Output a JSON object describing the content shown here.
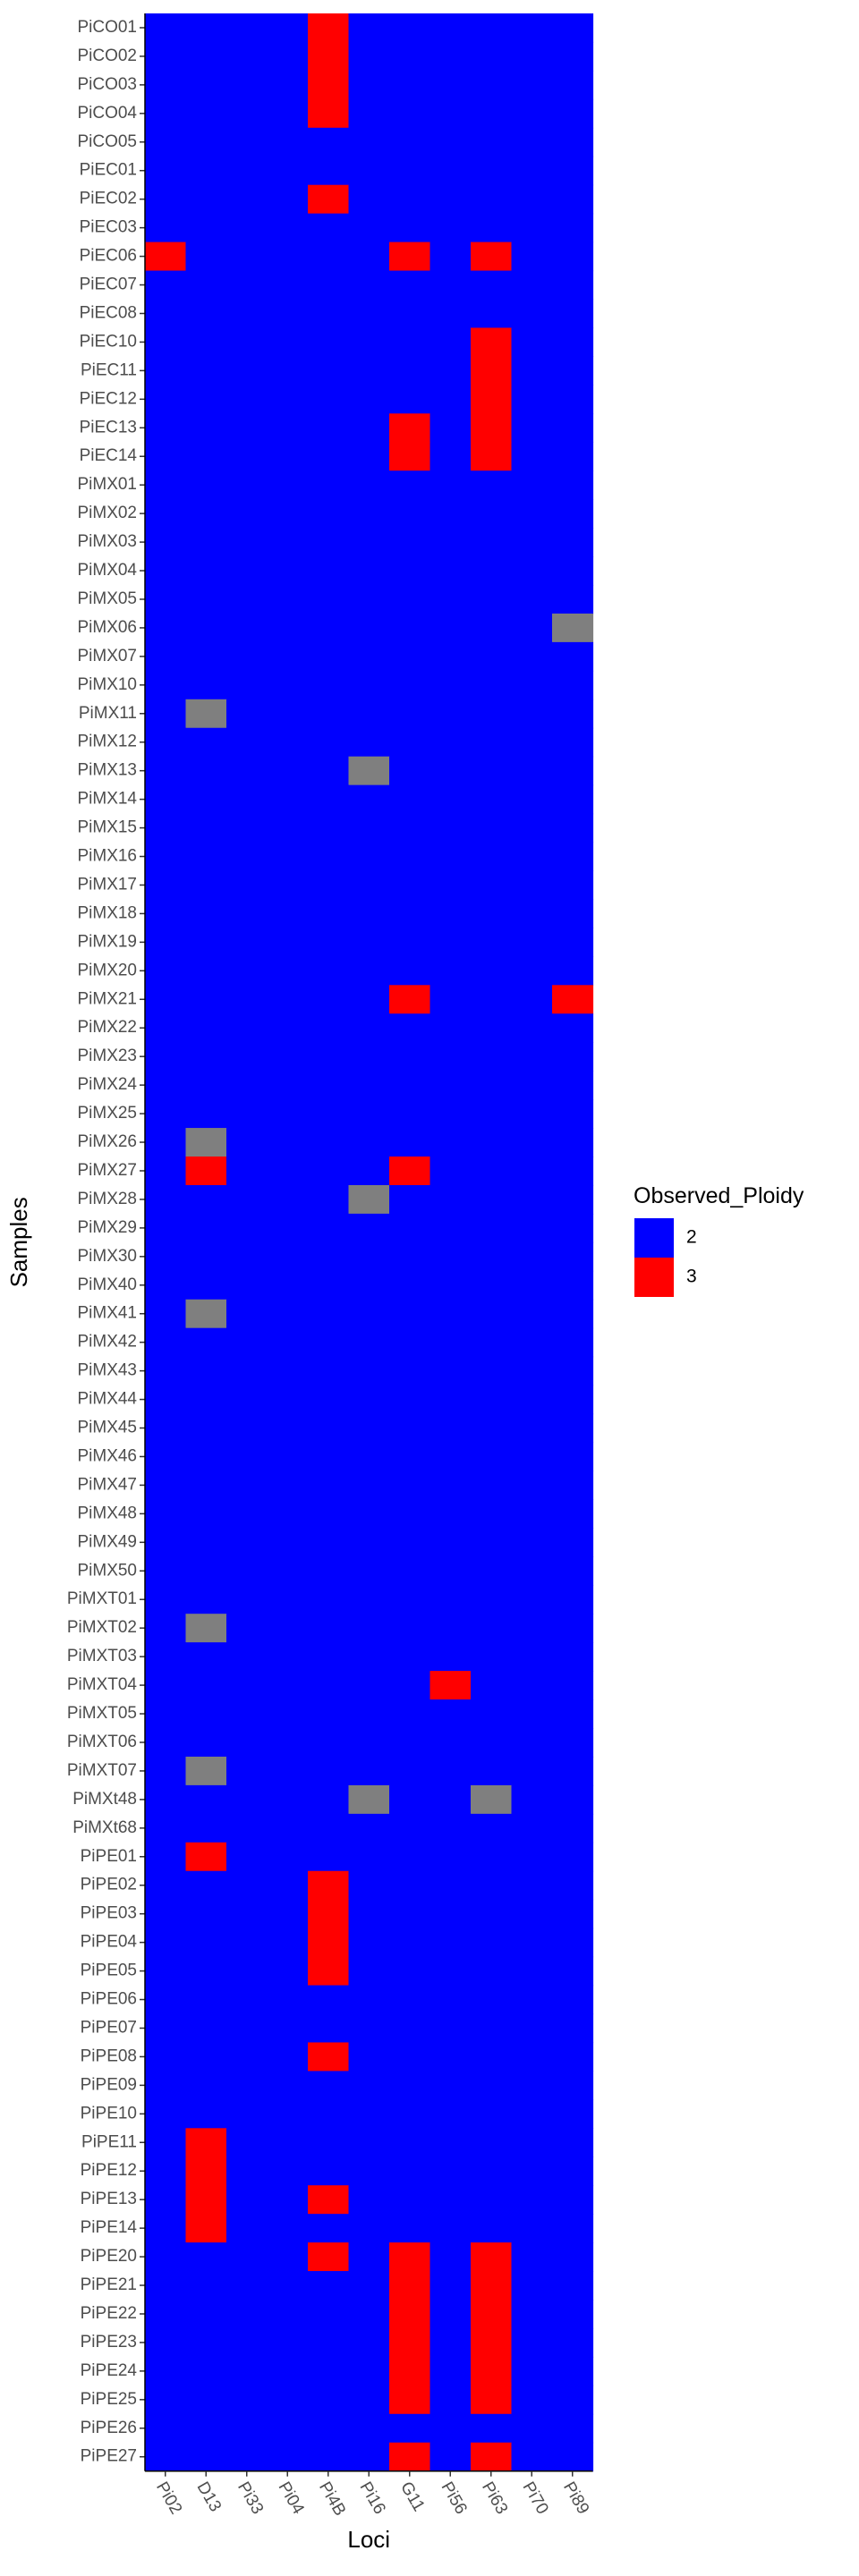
{
  "chart_data": {
    "type": "heatmap",
    "xlabel": "Loci",
    "ylabel": "Samples",
    "x": [
      "Pi02",
      "D13",
      "Pi33",
      "Pi04",
      "Pi4B",
      "Pi16",
      "G11",
      "Pi56",
      "Pi63",
      "Pi70",
      "Pi89"
    ],
    "y": [
      "PiCO01",
      "PiCO02",
      "PiCO03",
      "PiCO04",
      "PiCO05",
      "PiEC01",
      "PiEC02",
      "PiEC03",
      "PiEC06",
      "PiEC07",
      "PiEC08",
      "PiEC10",
      "PiEC11",
      "PiEC12",
      "PiEC13",
      "PiEC14",
      "PiMX01",
      "PiMX02",
      "PiMX03",
      "PiMX04",
      "PiMX05",
      "PiMX06",
      "PiMX07",
      "PiMX10",
      "PiMX11",
      "PiMX12",
      "PiMX13",
      "PiMX14",
      "PiMX15",
      "PiMX16",
      "PiMX17",
      "PiMX18",
      "PiMX19",
      "PiMX20",
      "PiMX21",
      "PiMX22",
      "PiMX23",
      "PiMX24",
      "PiMX25",
      "PiMX26",
      "PiMX27",
      "PiMX28",
      "PiMX29",
      "PiMX30",
      "PiMX40",
      "PiMX41",
      "PiMX42",
      "PiMX43",
      "PiMX44",
      "PiMX45",
      "PiMX46",
      "PiMX47",
      "PiMX48",
      "PiMX49",
      "PiMX50",
      "PiMXT01",
      "PiMXT02",
      "PiMXT03",
      "PiMXT04",
      "PiMXT05",
      "PiMXT06",
      "PiMXT07",
      "PiMXt48",
      "PiMXt68",
      "PiPE01",
      "PiPE02",
      "PiPE03",
      "PiPE04",
      "PiPE05",
      "PiPE06",
      "PiPE07",
      "PiPE08",
      "PiPE09",
      "PiPE10",
      "PiPE11",
      "PiPE12",
      "PiPE13",
      "PiPE14",
      "PiPE20",
      "PiPE21",
      "PiPE22",
      "PiPE23",
      "PiPE24",
      "PiPE25",
      "PiPE26",
      "PiPE27"
    ],
    "default_value": 2,
    "cells": [
      {
        "sample": "PiCO01",
        "locus": "Pi4B",
        "value": 3
      },
      {
        "sample": "PiCO02",
        "locus": "Pi4B",
        "value": 3
      },
      {
        "sample": "PiCO03",
        "locus": "Pi4B",
        "value": 3
      },
      {
        "sample": "PiCO04",
        "locus": "Pi4B",
        "value": 3
      },
      {
        "sample": "PiEC02",
        "locus": "Pi4B",
        "value": 3
      },
      {
        "sample": "PiEC06",
        "locus": "Pi02",
        "value": 3
      },
      {
        "sample": "PiEC06",
        "locus": "G11",
        "value": 3
      },
      {
        "sample": "PiEC06",
        "locus": "Pi63",
        "value": 3
      },
      {
        "sample": "PiEC10",
        "locus": "Pi63",
        "value": 3
      },
      {
        "sample": "PiEC11",
        "locus": "Pi63",
        "value": 3
      },
      {
        "sample": "PiEC12",
        "locus": "Pi63",
        "value": 3
      },
      {
        "sample": "PiEC13",
        "locus": "G11",
        "value": 3
      },
      {
        "sample": "PiEC13",
        "locus": "Pi63",
        "value": 3
      },
      {
        "sample": "PiEC14",
        "locus": "G11",
        "value": 3
      },
      {
        "sample": "PiEC14",
        "locus": "Pi63",
        "value": 3
      },
      {
        "sample": "PiMX06",
        "locus": "Pi89",
        "value": null
      },
      {
        "sample": "PiMX11",
        "locus": "D13",
        "value": null
      },
      {
        "sample": "PiMX13",
        "locus": "Pi16",
        "value": null
      },
      {
        "sample": "PiMX21",
        "locus": "G11",
        "value": 3
      },
      {
        "sample": "PiMX21",
        "locus": "Pi89",
        "value": 3
      },
      {
        "sample": "PiMX26",
        "locus": "D13",
        "value": null
      },
      {
        "sample": "PiMX27",
        "locus": "D13",
        "value": 3
      },
      {
        "sample": "PiMX27",
        "locus": "G11",
        "value": 3
      },
      {
        "sample": "PiMX28",
        "locus": "Pi16",
        "value": null
      },
      {
        "sample": "PiMX41",
        "locus": "D13",
        "value": null
      },
      {
        "sample": "PiMXT02",
        "locus": "D13",
        "value": null
      },
      {
        "sample": "PiMXT04",
        "locus": "Pi56",
        "value": 3
      },
      {
        "sample": "PiMXT07",
        "locus": "D13",
        "value": null
      },
      {
        "sample": "PiMXt48",
        "locus": "Pi16",
        "value": null
      },
      {
        "sample": "PiMXt48",
        "locus": "Pi63",
        "value": null
      },
      {
        "sample": "PiPE01",
        "locus": "D13",
        "value": 3
      },
      {
        "sample": "PiPE02",
        "locus": "Pi4B",
        "value": 3
      },
      {
        "sample": "PiPE03",
        "locus": "Pi4B",
        "value": 3
      },
      {
        "sample": "PiPE04",
        "locus": "Pi4B",
        "value": 3
      },
      {
        "sample": "PiPE05",
        "locus": "Pi4B",
        "value": 3
      },
      {
        "sample": "PiPE08",
        "locus": "Pi4B",
        "value": 3
      },
      {
        "sample": "PiPE11",
        "locus": "D13",
        "value": 3
      },
      {
        "sample": "PiPE12",
        "locus": "D13",
        "value": 3
      },
      {
        "sample": "PiPE13",
        "locus": "D13",
        "value": 3
      },
      {
        "sample": "PiPE13",
        "locus": "Pi4B",
        "value": 3
      },
      {
        "sample": "PiPE14",
        "locus": "D13",
        "value": 3
      },
      {
        "sample": "PiPE20",
        "locus": "Pi4B",
        "value": 3
      },
      {
        "sample": "PiPE20",
        "locus": "G11",
        "value": 3
      },
      {
        "sample": "PiPE20",
        "locus": "Pi63",
        "value": 3
      },
      {
        "sample": "PiPE21",
        "locus": "G11",
        "value": 3
      },
      {
        "sample": "PiPE21",
        "locus": "Pi63",
        "value": 3
      },
      {
        "sample": "PiPE22",
        "locus": "G11",
        "value": 3
      },
      {
        "sample": "PiPE22",
        "locus": "Pi63",
        "value": 3
      },
      {
        "sample": "PiPE23",
        "locus": "G11",
        "value": 3
      },
      {
        "sample": "PiPE23",
        "locus": "Pi63",
        "value": 3
      },
      {
        "sample": "PiPE24",
        "locus": "G11",
        "value": 3
      },
      {
        "sample": "PiPE24",
        "locus": "Pi63",
        "value": 3
      },
      {
        "sample": "PiPE25",
        "locus": "G11",
        "value": 3
      },
      {
        "sample": "PiPE25",
        "locus": "Pi63",
        "value": 3
      },
      {
        "sample": "PiPE27",
        "locus": "G11",
        "value": 3
      },
      {
        "sample": "PiPE27",
        "locus": "Pi63",
        "value": 3
      }
    ],
    "legend": {
      "title": "Observed_Ploidy",
      "placement": "right",
      "entries": [
        {
          "label": "2",
          "value": 2
        },
        {
          "label": "3",
          "value": 3
        }
      ]
    },
    "colors": {
      "2": "#0000FF",
      "3": "#FF0000",
      "na": "#7F7F7F"
    },
    "grid": false
  }
}
